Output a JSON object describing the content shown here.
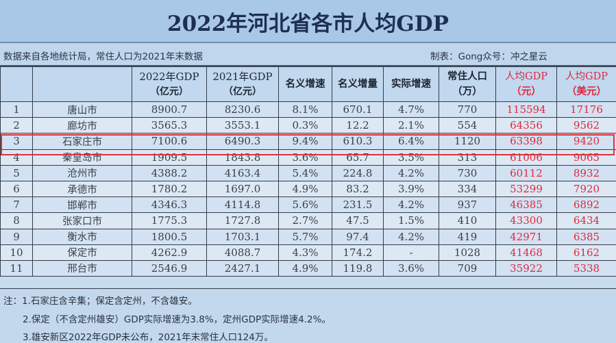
{
  "title": "2022年河北省各市人均GDP",
  "source": {
    "left": "数据来自各地统计局，常住人口为2021年末数据",
    "right": "制表：Gong众号：冲之星云"
  },
  "colors": {
    "title_bg": "#a9c7e6",
    "title_text": "#1c2f55",
    "highlight_border": "#d9323a",
    "per_capita_text": "#e0283c"
  },
  "table": {
    "headers": [
      {
        "line1": "",
        "line2": ""
      },
      {
        "line1": "",
        "line2": ""
      },
      {
        "line1": "2022年GDP",
        "line2": "（亿元）"
      },
      {
        "line1": "2021年GDP",
        "line2": "（亿元）"
      },
      {
        "line1": "名义增速",
        "line2": ""
      },
      {
        "line1": "名义增量",
        "line2": ""
      },
      {
        "line1": "实际增速",
        "line2": ""
      },
      {
        "line1": "常住人口",
        "line2": "（万）"
      },
      {
        "line1": "人均GDP",
        "line2": "（元）"
      },
      {
        "line1": "人均GDP",
        "line2": "（美元）"
      }
    ],
    "highlighted_row": 3,
    "rows": [
      {
        "rank": "1",
        "city": "唐山市",
        "gdp2022": "8900.7",
        "gdp2021": "8230.6",
        "nominal_growth": "8.1%",
        "nominal_increase": "670.1",
        "real_growth": "4.7%",
        "population": "770",
        "per_capita_cny": "115594",
        "per_capita_usd": "17176"
      },
      {
        "rank": "2",
        "city": "廊坊市",
        "gdp2022": "3565.3",
        "gdp2021": "3553.1",
        "nominal_growth": "0.3%",
        "nominal_increase": "12.2",
        "real_growth": "2.1%",
        "population": "554",
        "per_capita_cny": "64356",
        "per_capita_usd": "9562"
      },
      {
        "rank": "3",
        "city": "石家庄市",
        "gdp2022": "7100.6",
        "gdp2021": "6490.3",
        "nominal_growth": "9.4%",
        "nominal_increase": "610.3",
        "real_growth": "6.4%",
        "population": "1120",
        "per_capita_cny": "63398",
        "per_capita_usd": "9420"
      },
      {
        "rank": "4",
        "city": "秦皇岛市",
        "gdp2022": "1909.5",
        "gdp2021": "1843.8",
        "nominal_growth": "3.6%",
        "nominal_increase": "65.7",
        "real_growth": "3.5%",
        "population": "313",
        "per_capita_cny": "61006",
        "per_capita_usd": "9065"
      },
      {
        "rank": "5",
        "city": "沧州市",
        "gdp2022": "4388.2",
        "gdp2021": "4163.4",
        "nominal_growth": "5.4%",
        "nominal_increase": "224.8",
        "real_growth": "4.2%",
        "population": "730",
        "per_capita_cny": "60112",
        "per_capita_usd": "8932"
      },
      {
        "rank": "6",
        "city": "承德市",
        "gdp2022": "1780.2",
        "gdp2021": "1697.0",
        "nominal_growth": "4.9%",
        "nominal_increase": "83.2",
        "real_growth": "3.9%",
        "population": "334",
        "per_capita_cny": "53299",
        "per_capita_usd": "7920"
      },
      {
        "rank": "7",
        "city": "邯郸市",
        "gdp2022": "4346.3",
        "gdp2021": "4114.8",
        "nominal_growth": "5.6%",
        "nominal_increase": "231.5",
        "real_growth": "4.2%",
        "population": "937",
        "per_capita_cny": "46385",
        "per_capita_usd": "6892"
      },
      {
        "rank": "8",
        "city": "张家口市",
        "gdp2022": "1775.3",
        "gdp2021": "1727.8",
        "nominal_growth": "2.7%",
        "nominal_increase": "47.5",
        "real_growth": "1.5%",
        "population": "410",
        "per_capita_cny": "43300",
        "per_capita_usd": "6434"
      },
      {
        "rank": "9",
        "city": "衡水市",
        "gdp2022": "1800.5",
        "gdp2021": "1703.1",
        "nominal_growth": "5.7%",
        "nominal_increase": "97.4",
        "real_growth": "4.2%",
        "population": "419",
        "per_capita_cny": "42971",
        "per_capita_usd": "6385"
      },
      {
        "rank": "10",
        "city": "保定市",
        "gdp2022": "4262.9",
        "gdp2021": "4088.7",
        "nominal_growth": "4.3%",
        "nominal_increase": "174.2",
        "real_growth": "-",
        "population": "1028",
        "per_capita_cny": "41468",
        "per_capita_usd": "6162"
      },
      {
        "rank": "11",
        "city": "邢台市",
        "gdp2022": "2546.9",
        "gdp2021": "2427.1",
        "nominal_growth": "4.9%",
        "nominal_increase": "119.8",
        "real_growth": "3.6%",
        "population": "709",
        "per_capita_cny": "35922",
        "per_capita_usd": "5338"
      }
    ]
  },
  "notes": [
    "注：1.石家庄含辛集；保定含定州，不含雄安。",
    "2.保定（不含定州雄安）GDP实际增速为3.8%，定州GDP实际增速4.2%。",
    "3.雄安新区2022年GDP未公布，2021年末常住人口124万。"
  ]
}
